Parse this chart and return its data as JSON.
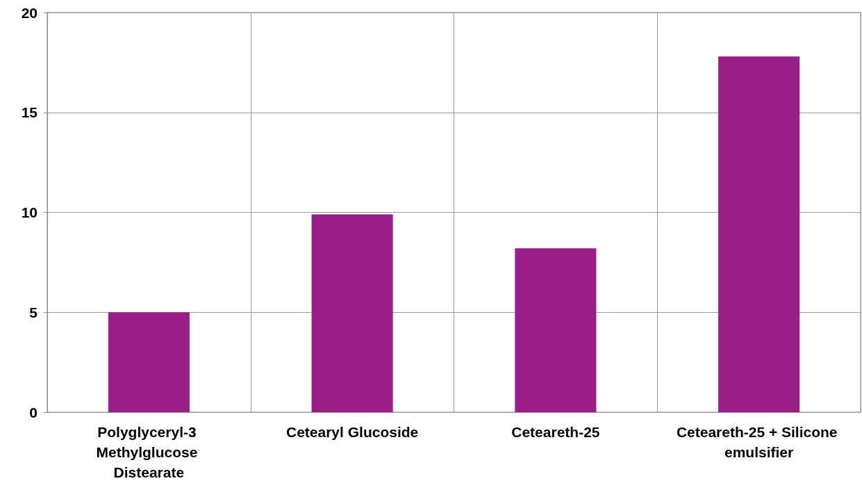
{
  "chart_data": {
    "type": "bar",
    "categories": [
      "Polyglyceryl-3 Methylglucose Distearate",
      "Cetearyl Glucoside",
      "Ceteareth-25",
      "Ceteareth-25 + Silicone emulsifier"
    ],
    "values": [
      5.0,
      9.9,
      8.2,
      17.8
    ],
    "color": "#9b1d87",
    "ylim": [
      0,
      20
    ],
    "yticks": [
      0,
      5,
      10,
      15,
      20
    ],
    "grid": true
  }
}
